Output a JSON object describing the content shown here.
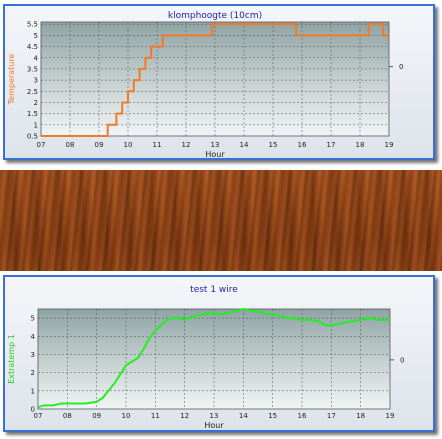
{
  "chart_data": [
    {
      "type": "line",
      "title": "klomphoogte (10cm)",
      "xlabel": "Hour",
      "ylabel": "Temperature",
      "xlim": [
        7,
        19
      ],
      "ylim": [
        0.5,
        5.6
      ],
      "x_ticks": [
        "07",
        "08",
        "09",
        "10",
        "11",
        "12",
        "13",
        "14",
        "15",
        "16",
        "17",
        "18",
        "19"
      ],
      "y_ticks": [
        "0.5",
        "1",
        "1.5",
        "2",
        "2.5",
        "3",
        "3.5",
        "4",
        "4.5",
        "5",
        "5.5"
      ],
      "right_tick": "0",
      "right_tick_value": 3.6,
      "line_color": "#f07a2a",
      "label_color": "#f07a2a",
      "series": [
        {
          "x": [
            7.0,
            9.3,
            9.3,
            9.6,
            9.6,
            9.8,
            9.8,
            10.0,
            10.0,
            10.2,
            10.2,
            10.4,
            10.4,
            10.6,
            10.6,
            10.8,
            10.8,
            11.0,
            11.0,
            11.2,
            11.2,
            11.4,
            11.4,
            11.6,
            11.6,
            12.9,
            12.9,
            15.8,
            15.8,
            18.3,
            18.3,
            18.6,
            18.6,
            18.8,
            18.8,
            19.0
          ],
          "y": [
            0.5,
            0.5,
            1.0,
            1.0,
            1.5,
            1.5,
            2.0,
            2.0,
            2.5,
            2.5,
            3.0,
            3.0,
            3.5,
            3.5,
            4.0,
            4.0,
            4.5,
            4.5,
            4.5,
            4.5,
            5.0,
            5.0,
            5.0,
            5.0,
            5.0,
            5.0,
            5.5,
            5.5,
            5.0,
            5.0,
            5.5,
            5.5,
            5.5,
            5.5,
            5.0,
            5.0
          ]
        }
      ]
    },
    {
      "type": "line",
      "title": "test 1 wire",
      "xlabel": "Hour",
      "ylabel": "Extratemp 1",
      "xlim": [
        7,
        19
      ],
      "ylim": [
        0,
        5.5
      ],
      "x_ticks": [
        "07",
        "08",
        "09",
        "10",
        "11",
        "12",
        "13",
        "14",
        "15",
        "16",
        "17",
        "18",
        "19"
      ],
      "y_ticks": [
        "0",
        "1",
        "2",
        "3",
        "4",
        "5"
      ],
      "right_tick": "0",
      "right_tick_value": 2.7,
      "line_color": "#22ee22",
      "label_color": "#22cc22",
      "series": [
        {
          "x": [
            7.0,
            7.2,
            7.5,
            7.8,
            8.0,
            8.3,
            8.6,
            9.0,
            9.2,
            9.4,
            9.6,
            9.8,
            10.0,
            10.2,
            10.4,
            10.6,
            10.8,
            11.0,
            11.2,
            11.4,
            11.6,
            11.8,
            12.0,
            12.3,
            12.6,
            12.9,
            13.2,
            13.5,
            13.8,
            14.0,
            14.3,
            14.6,
            15.0,
            15.3,
            15.6,
            16.0,
            16.3,
            16.6,
            16.8,
            17.0,
            17.3,
            17.6,
            18.0,
            18.3,
            18.6,
            19.0
          ],
          "y": [
            0.1,
            0.2,
            0.2,
            0.3,
            0.3,
            0.3,
            0.3,
            0.4,
            0.6,
            1.0,
            1.4,
            1.9,
            2.4,
            2.6,
            2.8,
            3.3,
            3.9,
            4.3,
            4.6,
            4.9,
            5.0,
            5.0,
            4.9,
            5.1,
            5.2,
            5.3,
            5.2,
            5.3,
            5.4,
            5.5,
            5.4,
            5.3,
            5.2,
            5.1,
            5.0,
            4.9,
            4.9,
            4.8,
            4.6,
            4.6,
            4.7,
            4.8,
            4.9,
            5.0,
            4.9,
            4.9
          ]
        }
      ]
    }
  ]
}
